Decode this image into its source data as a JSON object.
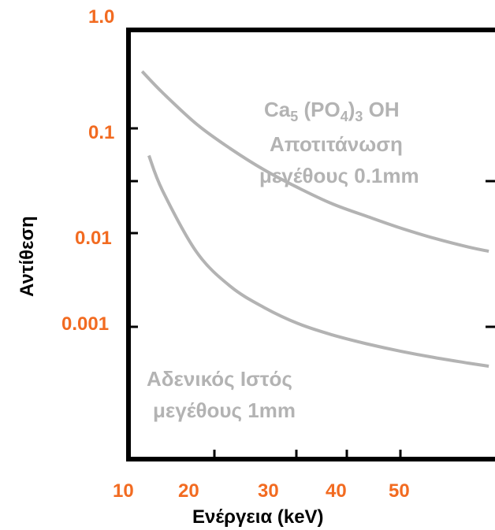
{
  "chart_data": {
    "type": "line",
    "title": "",
    "xlabel": "Ενέργεια (keV)",
    "ylabel": "Αντίθεση",
    "x_ticks": [
      "10",
      "20",
      "30",
      "40",
      "50"
    ],
    "y_ticks": [
      "1.0",
      "0.1",
      "0.01",
      "0.001"
    ],
    "xlim": [
      10,
      63
    ],
    "y_scale": "log",
    "grid": false,
    "colors": {
      "axis": "#000000",
      "ticks": "#f26b21",
      "series": "#b3b3b3"
    },
    "series": [
      {
        "annotation_lines": [
          "Ca",
          "5",
          " (PO",
          "4",
          ")",
          "3",
          " OH",
          "Αποτιτάνωση",
          "μεγέθους 0.1mm"
        ],
        "x": [
          12,
          15,
          20,
          25,
          30,
          35,
          40,
          45,
          50,
          55,
          60,
          63
        ],
        "y": [
          0.35,
          0.22,
          0.11,
          0.064,
          0.04,
          0.027,
          0.019,
          0.0145,
          0.0112,
          0.0088,
          0.0071,
          0.0064
        ]
      },
      {
        "annotation_lines": [
          "Αδενικός Ιστός",
          "μεγέθους 1mm"
        ],
        "x": [
          13,
          15,
          20,
          25,
          30,
          35,
          40,
          45,
          50,
          55,
          60,
          63
        ],
        "y": [
          0.055,
          0.0255,
          0.0063,
          0.0027,
          0.0016,
          0.00108,
          0.00082,
          0.00066,
          0.00055,
          0.00047,
          0.00041,
          0.00038
        ]
      }
    ]
  }
}
